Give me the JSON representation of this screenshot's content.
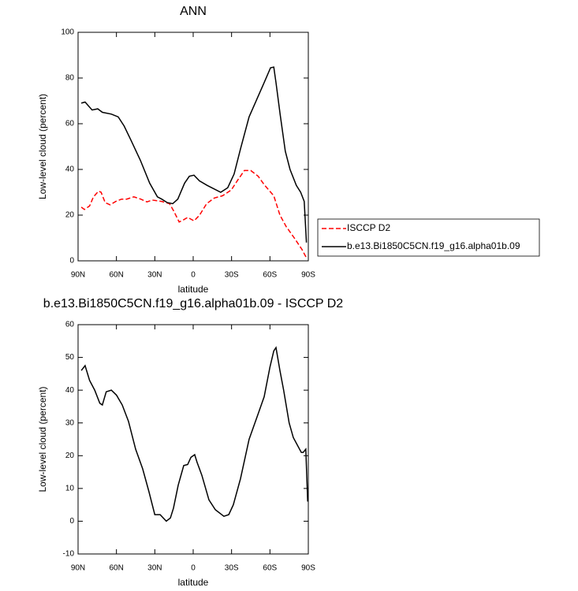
{
  "chart_data": [
    {
      "type": "line",
      "title": "ANN",
      "xlabel": "latitude",
      "ylabel": "Low-level cloud (percent)",
      "xlim": [
        90,
        -90
      ],
      "xticks": [
        {
          "value": 90,
          "label": "90N"
        },
        {
          "value": 60,
          "label": "60N"
        },
        {
          "value": 30,
          "label": "30N"
        },
        0,
        {
          "value": -30,
          "label": "30S"
        },
        {
          "value": -60,
          "label": "60S"
        },
        {
          "value": -90,
          "label": "90S"
        }
      ],
      "ylim": [
        0,
        100
      ],
      "yticks": [
        0,
        20,
        40,
        60,
        80,
        100
      ],
      "legend": true,
      "series": [
        {
          "name": "ISCCP D2",
          "color": "#ff0000",
          "dashed": true,
          "x": [
            87.5,
            85,
            81,
            78,
            74,
            72,
            68.8,
            65,
            60.5,
            56,
            52,
            46.4,
            41,
            36.2,
            32,
            24.6,
            18.5,
            15.4,
            11,
            7.4,
            4.3,
            -0.7,
            -5,
            -10.5,
            -16.5,
            -23,
            -29.8,
            -35,
            -40,
            -45,
            -50.8,
            -56,
            -63,
            -67.8,
            -72.7,
            -79,
            -85,
            -88.8
          ],
          "values": [
            23.5,
            22.5,
            24,
            28,
            30.5,
            30,
            25.5,
            24.5,
            26,
            27,
            27,
            28,
            27,
            25.8,
            26.6,
            26,
            25,
            22,
            17,
            18,
            19,
            17.5,
            20,
            25,
            27.5,
            28.5,
            31,
            35.5,
            39.5,
            39.5,
            37,
            33,
            28.5,
            20,
            15,
            10,
            5,
            1
          ]
        },
        {
          "name": "b.e13.Bi1850C5CN.f19_g16.alpha01b.09",
          "color": "#000000",
          "dashed": false,
          "x": [
            87.5,
            84.5,
            79,
            74.6,
            71,
            64,
            58.6,
            54,
            48.8,
            41.3,
            34,
            28,
            24.6,
            20.3,
            16,
            12,
            6.7,
            3,
            -0.6,
            -4.9,
            -11,
            -21.5,
            -27,
            -32,
            -37,
            -43.7,
            -50,
            -55.5,
            -60.5,
            -63,
            -64.7,
            -68,
            -72,
            -75.7,
            -80.6,
            -84,
            -86.8,
            -88.5
          ],
          "values": [
            69,
            69.5,
            66,
            66.5,
            65,
            64.2,
            63,
            59,
            53,
            44,
            34,
            28,
            27,
            25.5,
            25,
            27,
            34,
            37,
            37.5,
            35,
            33,
            30,
            32,
            38,
            49,
            63,
            71,
            78,
            84.5,
            84.8,
            78,
            64,
            48,
            40,
            33,
            30,
            26,
            8
          ]
        }
      ]
    },
    {
      "type": "line",
      "title": "b.e13.Bi1850C5CN.f19_g16.alpha01b.09 - ISCCP D2",
      "xlabel": "latitude",
      "ylabel": "Low-level cloud (percent)",
      "xlim": [
        90,
        -90
      ],
      "xticks": [
        {
          "value": 90,
          "label": "90N"
        },
        {
          "value": 60,
          "label": "60N"
        },
        {
          "value": 30,
          "label": "30N"
        },
        0,
        {
          "value": -30,
          "label": "30S"
        },
        {
          "value": -60,
          "label": "60S"
        },
        {
          "value": -90,
          "label": "90S"
        }
      ],
      "ylim": [
        -10,
        60
      ],
      "yticks": [
        -10,
        0,
        10,
        20,
        30,
        40,
        50,
        60
      ],
      "legend": false,
      "series": [
        {
          "color": "#000000",
          "dashed": false,
          "x": [
            87.5,
            84.5,
            81,
            77,
            73,
            71,
            68,
            64,
            60,
            55.5,
            50.6,
            45,
            39.5,
            34.6,
            30,
            25.8,
            21,
            17.8,
            15.4,
            11.7,
            7.4,
            4.3,
            1.8,
            -1.2,
            -3,
            -6.8,
            -12.3,
            -17.3,
            -24,
            -27.8,
            -31.4,
            -37,
            -43.7,
            -51,
            -55.5,
            -60,
            -63,
            -64.7,
            -67.8,
            -70.7,
            -75,
            -78.3,
            -84.5,
            -86,
            -88,
            -89.5
          ],
          "values": [
            46,
            47.5,
            43,
            40,
            36,
            35.5,
            39.5,
            40,
            38.5,
            35.5,
            30.5,
            22,
            16,
            9,
            2,
            2,
            0,
            1,
            4,
            11,
            17,
            17.3,
            19.5,
            20.3,
            18,
            14,
            6.5,
            3.5,
            1.5,
            2,
            5,
            13,
            25,
            33,
            38,
            47,
            52,
            53,
            46,
            40,
            30,
            25.5,
            21,
            21,
            22,
            6
          ]
        }
      ]
    }
  ]
}
